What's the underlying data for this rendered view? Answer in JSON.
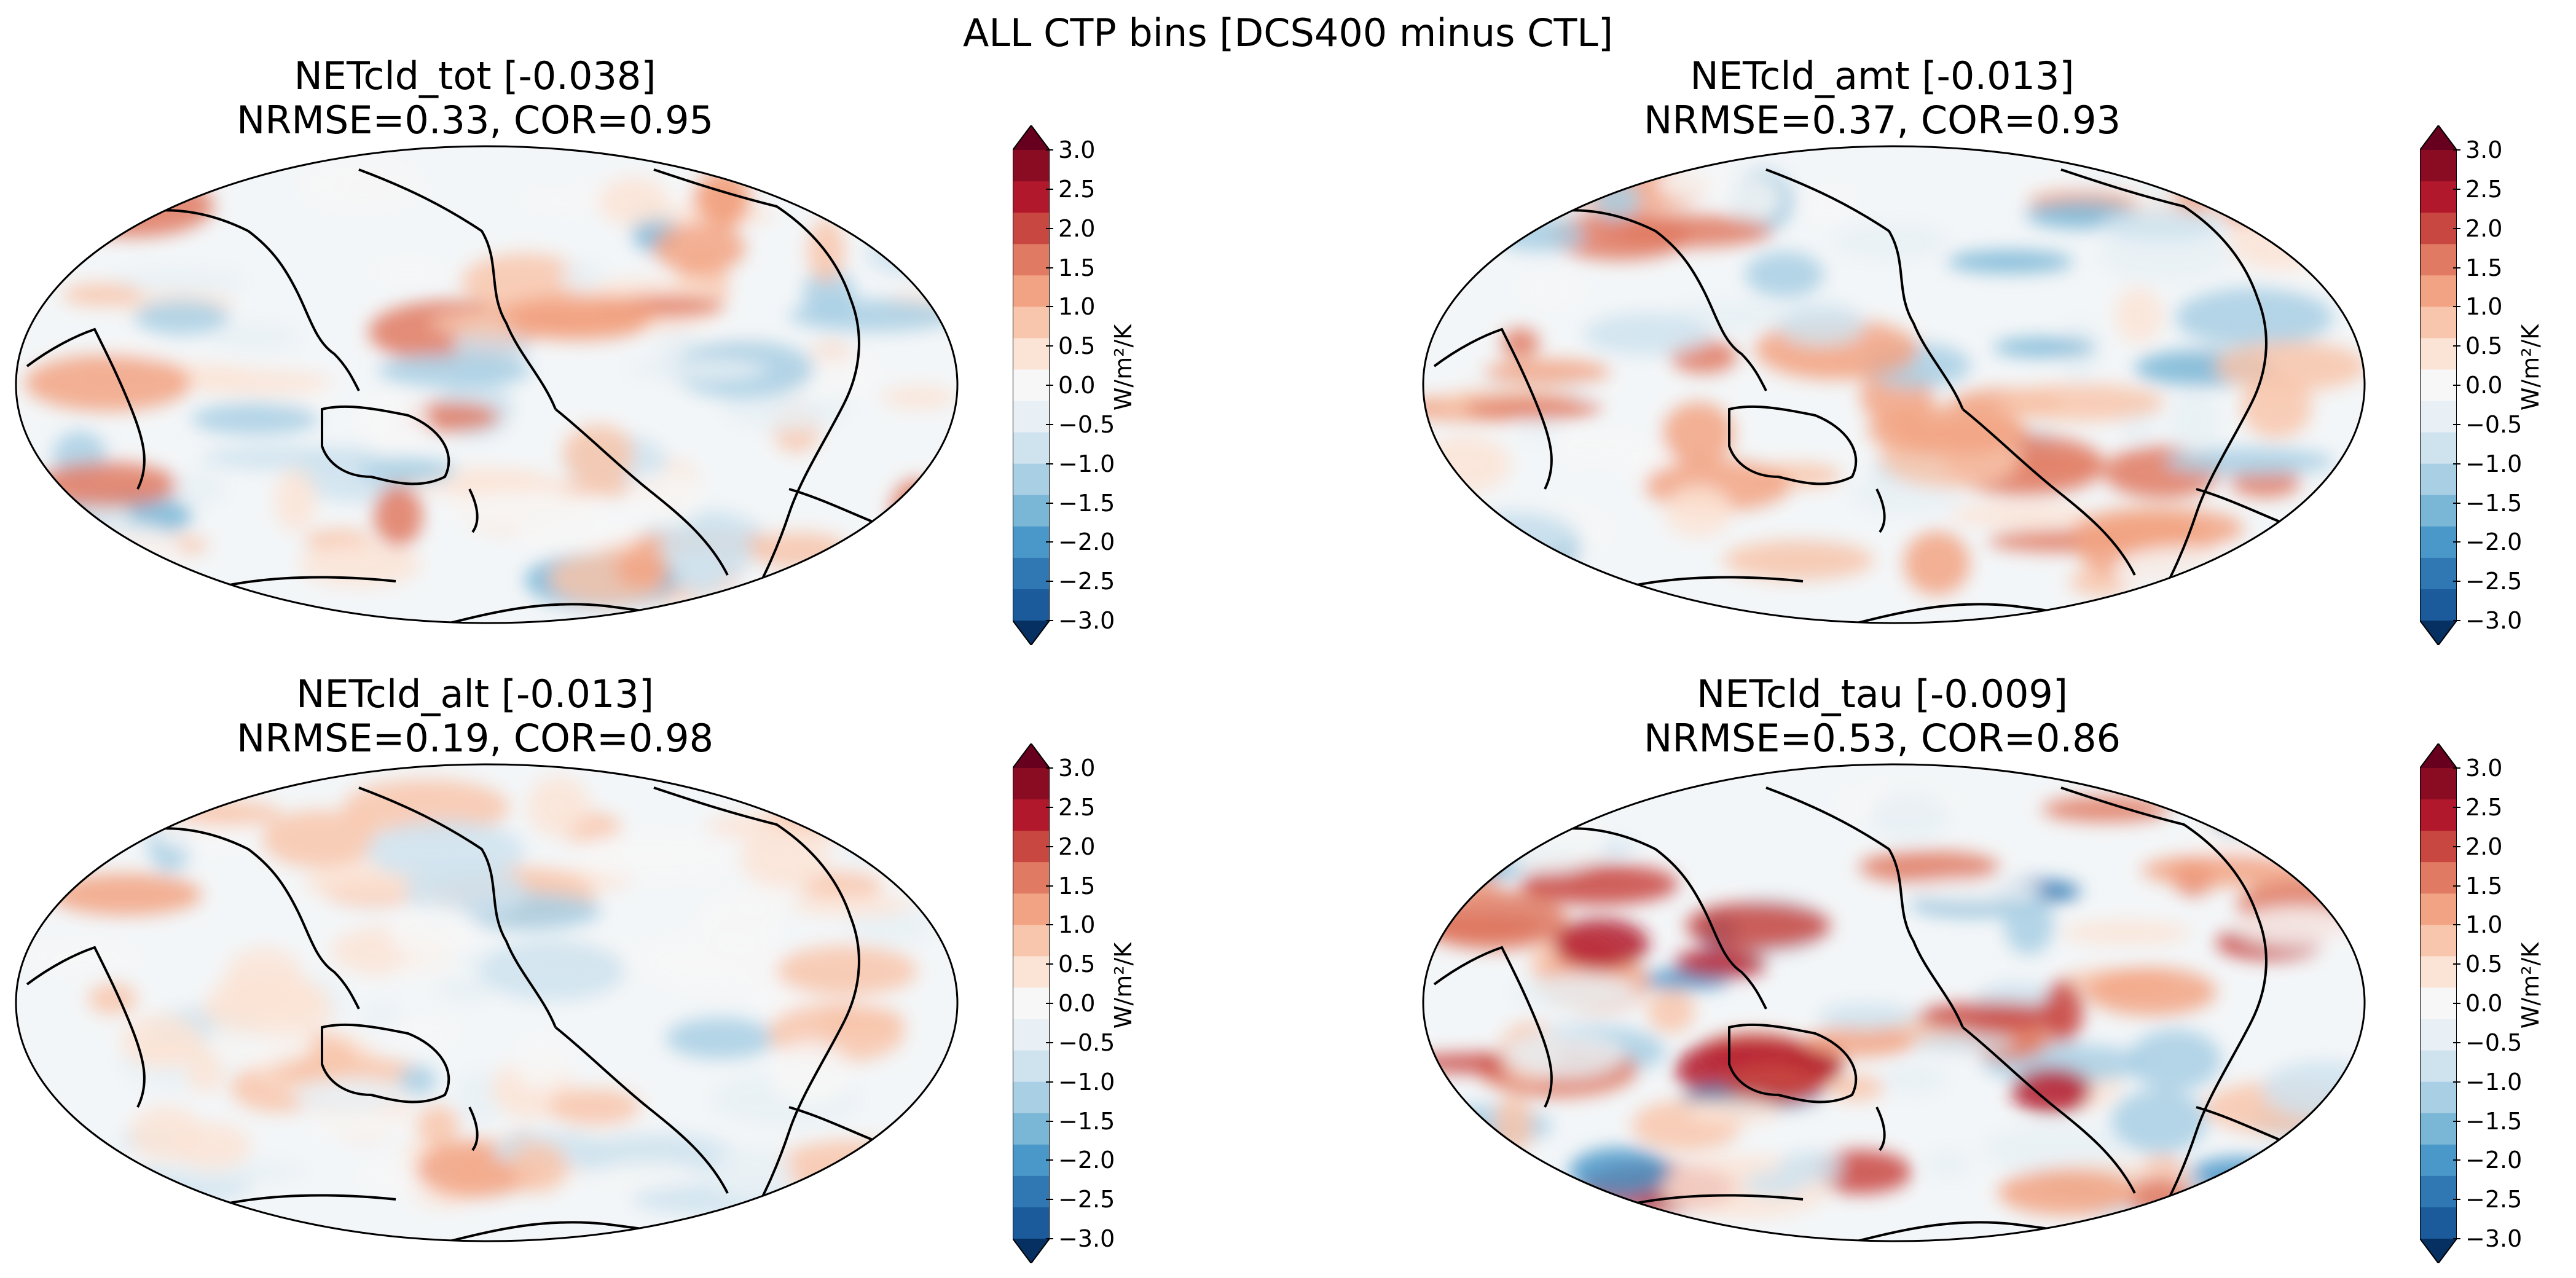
{
  "suptitle": "ALL CTP bins [DCS400 minus CTL]",
  "colorbar": {
    "ticks": [
      "3.0",
      "2.5",
      "2.0",
      "1.5",
      "1.0",
      "0.5",
      "0.0",
      "−0.5",
      "−1.0",
      "−1.5",
      "−2.0",
      "−2.5",
      "−3.0"
    ],
    "unit": "W/m²/K",
    "range": [
      -3.0,
      3.0
    ],
    "colors": [
      "#053061",
      "#1b5b9c",
      "#2f78b4",
      "#4a98c9",
      "#7ab6d6",
      "#a8cfe4",
      "#cfe3ef",
      "#e8f0f5",
      "#f7f7f7",
      "#fbe4d6",
      "#f8c6ac",
      "#f2a383",
      "#e07a62",
      "#c94741",
      "#b2182b",
      "#8a0c23",
      "#67001f"
    ]
  },
  "panels": [
    {
      "title": "NETcld_tot [-0.038]",
      "stats": "NRMSE=0.33, COR=0.95",
      "mean": -0.038,
      "nrmse": 0.33,
      "cor": 0.95
    },
    {
      "title": "NETcld_amt [-0.013]",
      "stats": "NRMSE=0.37, COR=0.93",
      "mean": -0.013,
      "nrmse": 0.37,
      "cor": 0.93
    },
    {
      "title": "NETcld_alt [-0.013]",
      "stats": "NRMSE=0.19, COR=0.98",
      "mean": -0.013,
      "nrmse": 0.19,
      "cor": 0.98
    },
    {
      "title": "NETcld_tau [-0.009]",
      "stats": "NRMSE=0.53, COR=0.86",
      "mean": -0.009,
      "nrmse": 0.53,
      "cor": 0.86
    }
  ]
}
